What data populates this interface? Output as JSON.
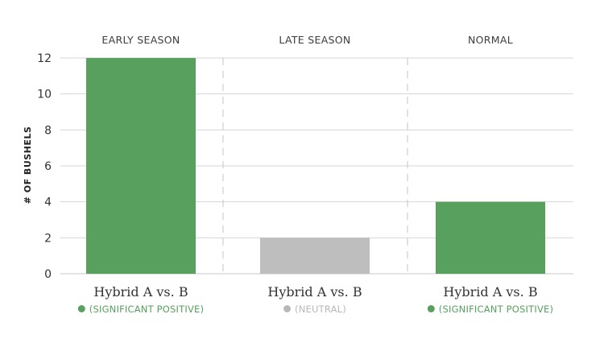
{
  "chart_data": {
    "type": "bar",
    "title": "",
    "xlabel": "",
    "ylabel": "# OF BUSHELS",
    "ylim": [
      0,
      12
    ],
    "yticks": [
      0,
      2,
      4,
      6,
      8,
      10,
      12
    ],
    "grid": true,
    "panels": [
      {
        "title": "EARLY SEASON",
        "category": "Hybrid A vs. B",
        "value": 12,
        "status": "(SIGNIFICANT POSITIVE)",
        "color": "#57a05e",
        "status_color": "#57a05e"
      },
      {
        "title": "LATE SEASON",
        "category": "Hybrid A vs. B",
        "value": 2,
        "status": "(NEUTRAL)",
        "color": "#bebebf",
        "status_color": "#b8b8b8"
      },
      {
        "title": "NORMAL",
        "category": "Hybrid A vs. B",
        "value": 4,
        "status": "(SIGNIFICANT POSITIVE)",
        "color": "#57a05e",
        "status_color": "#57a05e"
      }
    ]
  }
}
